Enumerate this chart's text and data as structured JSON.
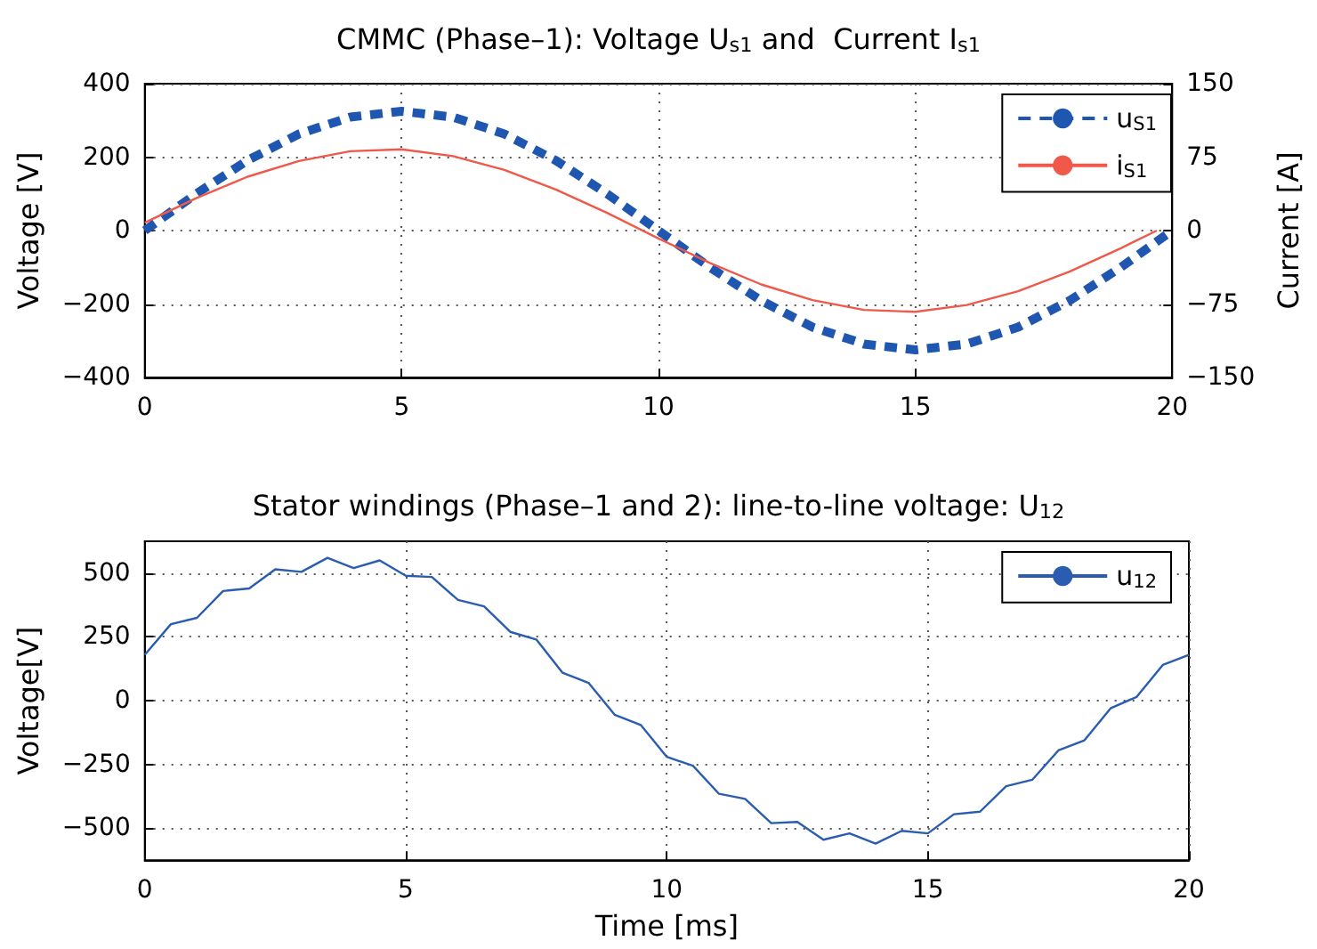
{
  "chart_data": [
    {
      "type": "line",
      "title": "CMMC (Phase–1): Voltage U$_{s1}$ and  Current I$_{s1}$",
      "ylabel": "Voltage [V]",
      "y2label": "Current [A]",
      "x": [
        0,
        1,
        2,
        3,
        4,
        5,
        6,
        7,
        8,
        9,
        10,
        11,
        12,
        13,
        14,
        15,
        16,
        17,
        18,
        19,
        20
      ],
      "series": [
        {
          "name": "u$_{S1}$",
          "color": "#1f56b0",
          "line_style": "dashed",
          "values": [
            0,
            100,
            191,
            263,
            309,
            325,
            309,
            263,
            191,
            100,
            0,
            -100,
            -191,
            -263,
            -309,
            -325,
            -309,
            -263,
            -191,
            -100,
            0
          ]
        },
        {
          "name": "i$_{S1}$",
          "color": "#f0584a",
          "axis": "y2",
          "line_style": "solid",
          "x": [
            0,
            1,
            2,
            3,
            4,
            5,
            6,
            7,
            8,
            9,
            10,
            11,
            12,
            13,
            14,
            15,
            16,
            17,
            18,
            19,
            19.7
          ],
          "values": [
            8,
            33,
            55,
            71,
            81,
            83,
            76,
            62,
            42,
            18,
            -8,
            -33,
            -55,
            -71,
            -81,
            -83,
            -76,
            -62,
            -42,
            -18,
            0
          ]
        }
      ],
      "xlim": [
        0,
        20
      ],
      "xticks": [
        0,
        5,
        10,
        15,
        20
      ],
      "ylim": [
        -400,
        400
      ],
      "yticks": [
        -400,
        -200,
        0,
        200,
        400
      ],
      "y2lim": [
        -150,
        150
      ],
      "y2ticks": [
        -150,
        -75,
        0,
        75,
        150
      ],
      "grid": true,
      "legend": "top right",
      "marker": "none"
    },
    {
      "type": "line",
      "title": "Stator windings (Phase–1 and 2): line-to-line voltage: U$_{12}$",
      "xlabel": "Time [ms]",
      "ylabel": "Voltage[V]",
      "x": [
        0,
        0.5,
        1,
        1.5,
        2,
        2.5,
        3,
        3.5,
        4,
        4.5,
        5,
        5.5,
        6,
        6.5,
        7,
        7.5,
        8,
        8.5,
        9,
        9.5,
        10,
        10.5,
        11,
        11.5,
        12,
        12.5,
        13,
        13.5,
        14,
        14.5,
        15,
        15.5,
        16,
        16.5,
        17,
        17.5,
        18,
        18.5,
        19,
        19.5,
        20
      ],
      "series": [
        {
          "name": "u$_{12}$",
          "color": "#2a5cb0",
          "line_style": "solid",
          "values": [
            180,
            300,
            325,
            430,
            440,
            515,
            505,
            560,
            520,
            550,
            490,
            485,
            395,
            370,
            270,
            240,
            110,
            70,
            -55,
            -95,
            -220,
            -255,
            -365,
            -385,
            -480,
            -475,
            -545,
            -520,
            -560,
            -510,
            -520,
            -445,
            -435,
            -335,
            -310,
            -195,
            -155,
            -30,
            15,
            140,
            180
          ]
        }
      ],
      "xlim": [
        0,
        20
      ],
      "xticks": [
        0,
        5,
        10,
        15,
        20
      ],
      "ylim": [
        -625,
        625
      ],
      "yticks": [
        -500,
        -250,
        0,
        250,
        500
      ],
      "grid": true,
      "legend": "top right",
      "marker": "none"
    }
  ]
}
